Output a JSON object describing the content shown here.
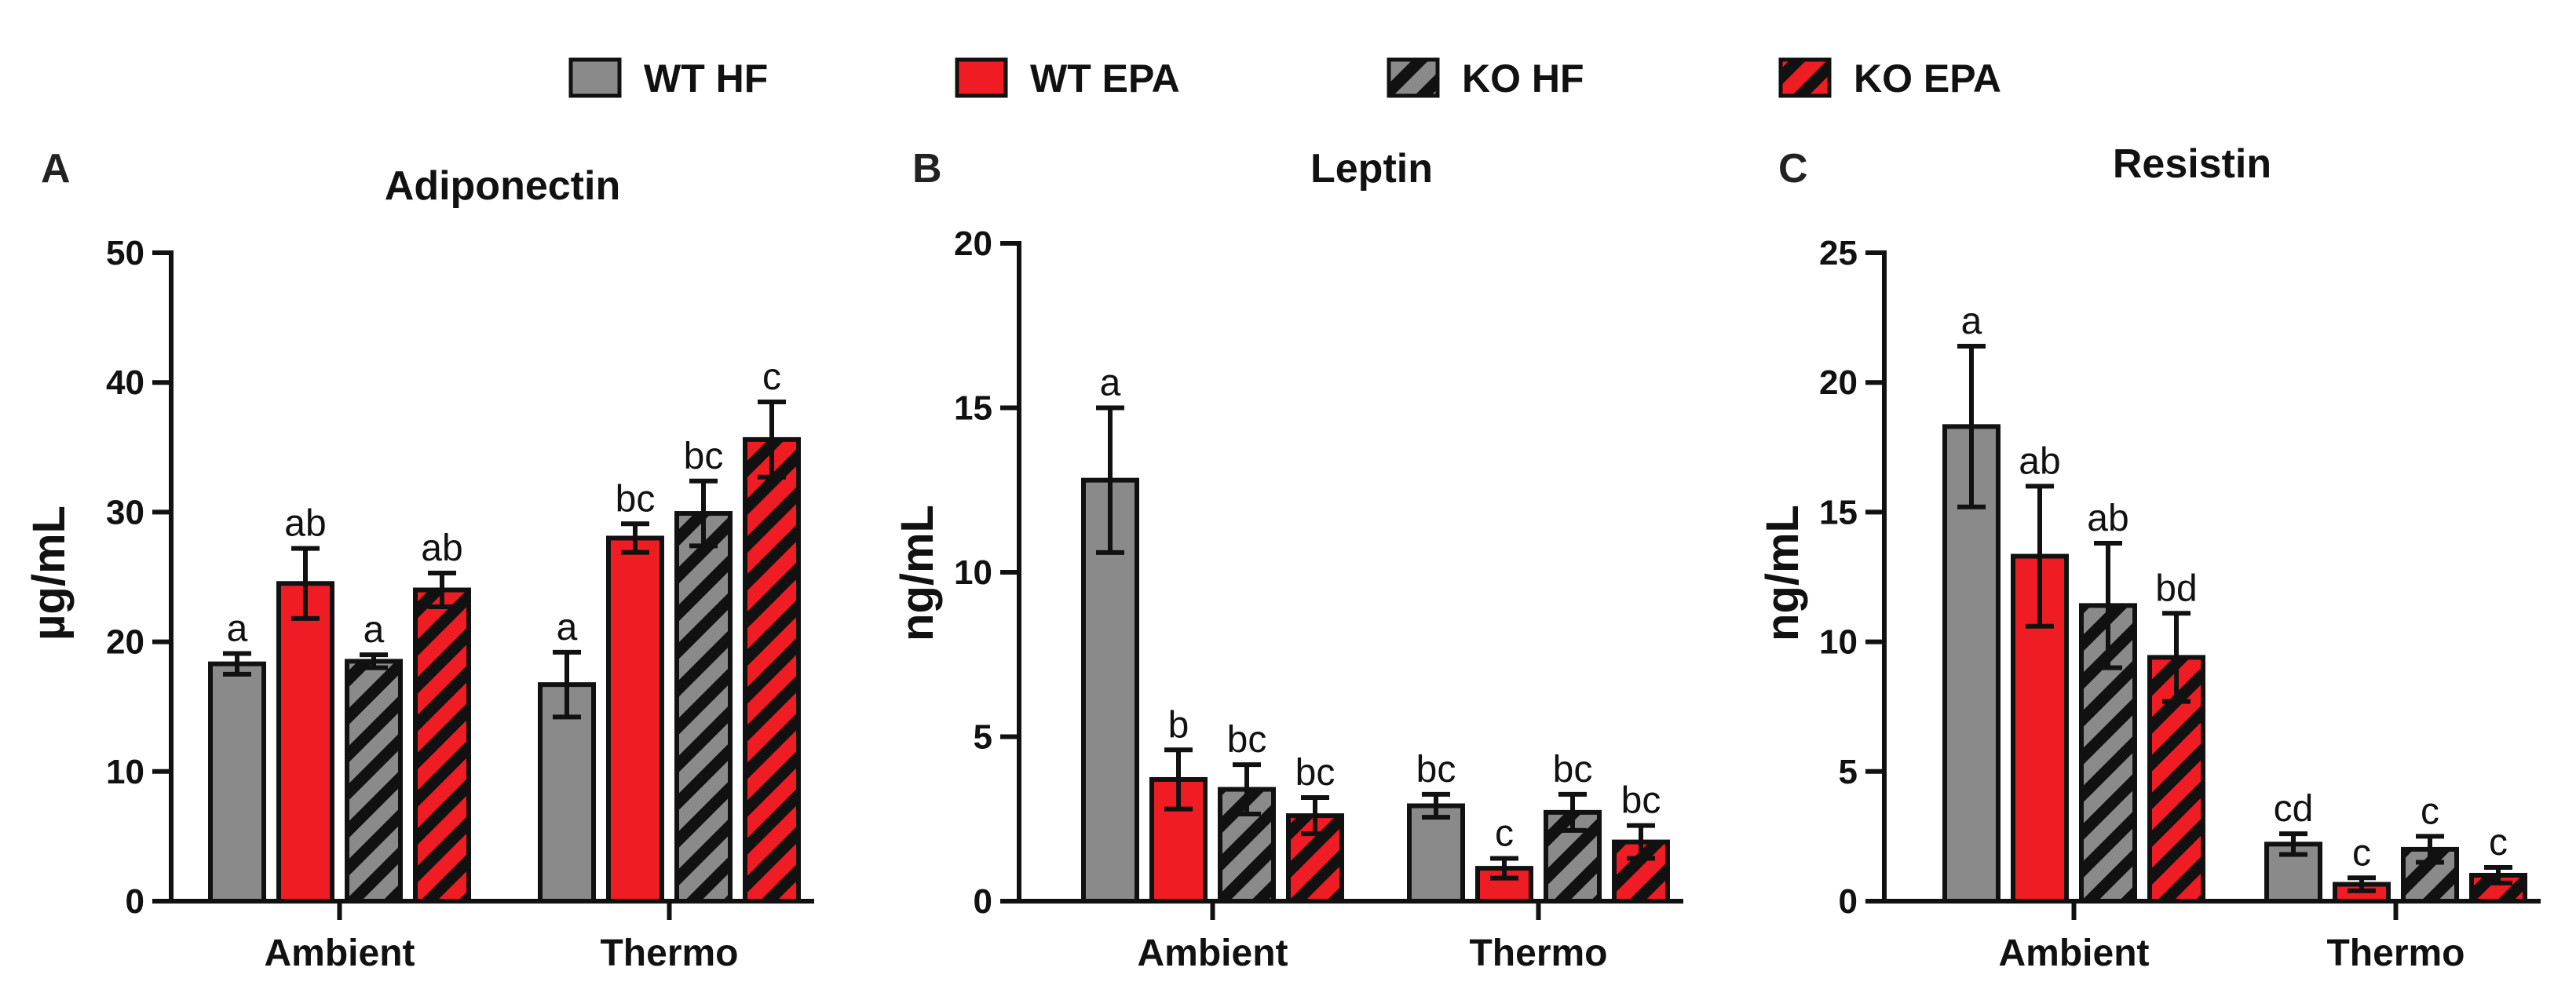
{
  "legend": [
    {
      "label": "WT HF",
      "fill": "#8a8a8a",
      "hatched": false
    },
    {
      "label": "WT EPA",
      "fill": "#f01c24",
      "hatched": false
    },
    {
      "label": "KO HF",
      "fill": "#8a8a8a",
      "hatched": true
    },
    {
      "label": "KO EPA",
      "fill": "#f01c24",
      "hatched": true
    }
  ],
  "colors": {
    "gray": "#8a8a8a",
    "red": "#f01c24",
    "stroke": "#111111",
    "hatch": "#111111"
  },
  "chart_data": [
    {
      "panel": "A",
      "type": "bar",
      "title": "Adiponectin",
      "ylabel": "µg/mL",
      "xlabel": "",
      "ylim": [
        0,
        50
      ],
      "yticks": [
        0,
        10,
        20,
        30,
        40,
        50
      ],
      "categories": [
        "Ambient",
        "Thermo"
      ],
      "series": [
        {
          "name": "WT HF",
          "values": [
            18.3,
            16.7
          ],
          "errors": [
            0.8,
            2.5
          ],
          "labels": [
            "a",
            "a"
          ]
        },
        {
          "name": "WT EPA",
          "values": [
            24.5,
            28.0
          ],
          "errors": [
            2.7,
            1.1
          ],
          "labels": [
            "ab",
            "bc"
          ]
        },
        {
          "name": "KO HF",
          "values": [
            18.5,
            29.9
          ],
          "errors": [
            0.5,
            2.5
          ],
          "labels": [
            "a",
            "bc"
          ]
        },
        {
          "name": "KO EPA",
          "values": [
            24.0,
            35.6
          ],
          "errors": [
            1.3,
            2.9
          ],
          "labels": [
            "ab",
            "c"
          ]
        }
      ]
    },
    {
      "panel": "B",
      "type": "bar",
      "title": "Leptin",
      "ylabel": "ng/mL",
      "xlabel": "",
      "ylim": [
        0,
        20
      ],
      "yticks": [
        0,
        5,
        10,
        15,
        20
      ],
      "categories": [
        "Ambient",
        "Thermo"
      ],
      "series": [
        {
          "name": "WT HF",
          "values": [
            12.8,
            2.9
          ],
          "errors": [
            2.2,
            0.35
          ],
          "labels": [
            "a",
            "bc"
          ]
        },
        {
          "name": "WT EPA",
          "values": [
            3.7,
            1.0
          ],
          "errors": [
            0.9,
            0.3
          ],
          "labels": [
            "b",
            "c"
          ]
        },
        {
          "name": "KO HF",
          "values": [
            3.4,
            2.7
          ],
          "errors": [
            0.75,
            0.55
          ],
          "labels": [
            "bc",
            "bc"
          ]
        },
        {
          "name": "KO EPA",
          "values": [
            2.6,
            1.8
          ],
          "errors": [
            0.55,
            0.5
          ],
          "labels": [
            "bc",
            "bc"
          ]
        }
      ]
    },
    {
      "panel": "C",
      "type": "bar",
      "title": "Resistin",
      "ylabel": "ng/mL",
      "xlabel": "",
      "ylim": [
        0,
        25
      ],
      "yticks": [
        0,
        5,
        10,
        15,
        20,
        25
      ],
      "categories": [
        "Ambient",
        "Thermo"
      ],
      "series": [
        {
          "name": "WT HF",
          "values": [
            18.3,
            2.2
          ],
          "errors": [
            3.1,
            0.4
          ],
          "labels": [
            "a",
            "cd"
          ]
        },
        {
          "name": "WT EPA",
          "values": [
            13.3,
            0.65
          ],
          "errors": [
            2.7,
            0.25
          ],
          "labels": [
            "ab",
            "c"
          ]
        },
        {
          "name": "KO HF",
          "values": [
            11.4,
            2.0
          ],
          "errors": [
            2.4,
            0.5
          ],
          "labels": [
            "ab",
            "c"
          ]
        },
        {
          "name": "KO EPA",
          "values": [
            9.4,
            1.0
          ],
          "errors": [
            1.7,
            0.3
          ],
          "labels": [
            "bd",
            "c"
          ]
        }
      ]
    }
  ]
}
